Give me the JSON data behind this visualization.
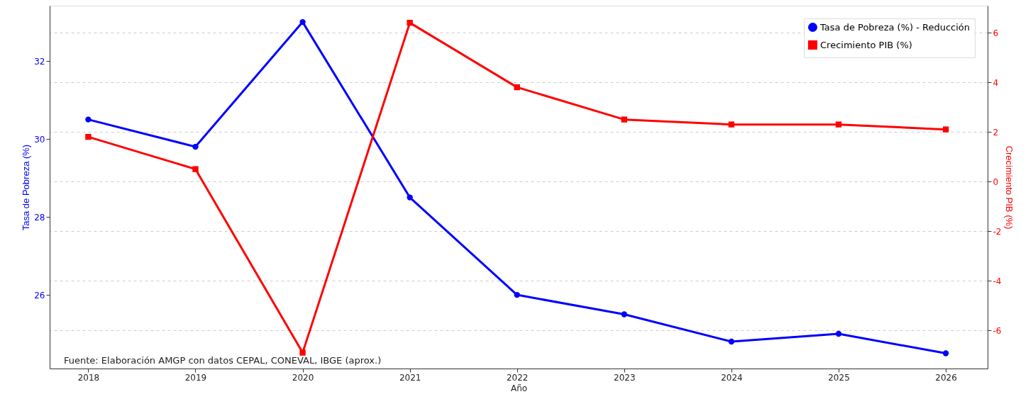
{
  "chart_data": {
    "type": "line",
    "xlabel": "Año",
    "ylabel": "Tasa de Pobreza (%)",
    "y2label": "Crecimiento PIB (%)",
    "x": [
      2018,
      2019,
      2020,
      2021,
      2022,
      2023,
      2024,
      2025,
      2026
    ],
    "series": [
      {
        "name": "Tasa de Pobreza (%) - Reducción",
        "color": "#0000ff",
        "marker": "circle",
        "values": [
          30.5,
          29.8,
          33.0,
          28.5,
          26.0,
          25.5,
          24.8,
          25.0,
          24.5
        ]
      },
      {
        "name": "Crecimiento PIB (%)",
        "color": "#ff0000",
        "marker": "square",
        "axis": "y2",
        "values": [
          1.8,
          0.5,
          -6.9,
          6.4,
          3.8,
          2.5,
          2.3,
          2.3,
          2.1
        ]
      }
    ],
    "xlim": [
      2017.64,
      2026.39
    ],
    "xticks": [
      2018,
      2019,
      2020,
      2021,
      2022,
      2023,
      2024,
      2025,
      2026
    ],
    "ylim": [
      24.11,
      33.42
    ],
    "yticks": [
      26,
      28,
      30,
      32
    ],
    "y2lim": [
      -7.54,
      7.09
    ],
    "y2ticks": [
      -6,
      -4,
      -2,
      0,
      2,
      4,
      6
    ],
    "grid": "y2",
    "legend": "top right",
    "line_style": "solid",
    "annotations": [
      "Fuente: Elaboración AMGP con datos CEPAL, CONEVAL, IBGE (aprox.)"
    ]
  }
}
